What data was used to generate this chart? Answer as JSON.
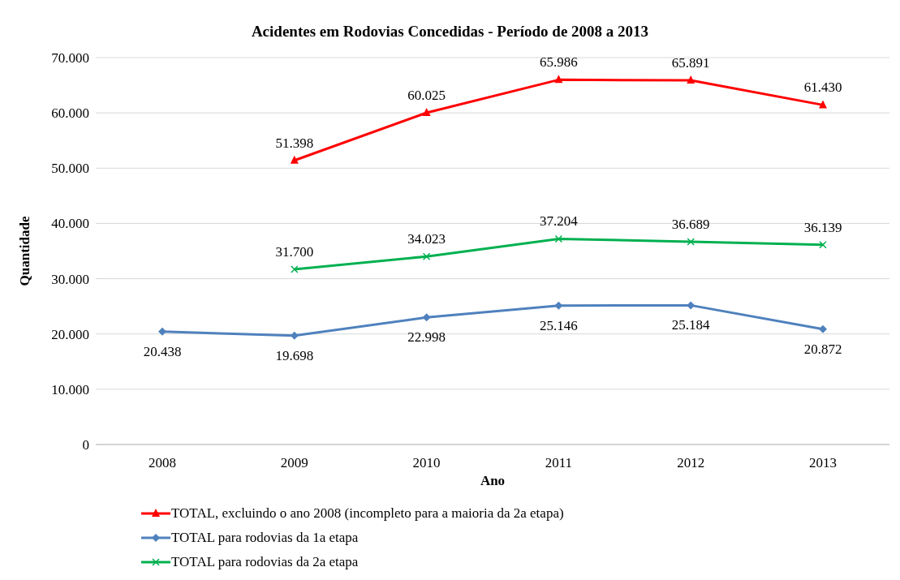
{
  "chart_data": {
    "type": "line",
    "title": "Acidentes em Rodovias Concedidas - Período de 2008 a 2013",
    "xlabel": "Ano",
    "ylabel": "Quantidade",
    "categories": [
      "2008",
      "2009",
      "2010",
      "2011",
      "2012",
      "2013"
    ],
    "series": [
      {
        "name": "TOTAL, excluindo o ano 2008 (incompleto para a maioria da 2a etapa)",
        "color": "#ff0000",
        "marker": "triangle",
        "values": [
          null,
          51398,
          60025,
          65986,
          65891,
          61430
        ],
        "value_labels": [
          null,
          "51.398",
          "60.025",
          "65.986",
          "65.891",
          "61.430"
        ]
      },
      {
        "name": "TOTAL para rodovias da 1a etapa",
        "color": "#4f81bd",
        "marker": "diamond",
        "values": [
          20438,
          19698,
          22998,
          25146,
          25184,
          20872
        ],
        "value_labels": [
          "20.438",
          "19.698",
          "22.998",
          "25.146",
          "25.184",
          "20.872"
        ]
      },
      {
        "name": "TOTAL para rodovias da 2a etapa",
        "color": "#00b050",
        "marker": "cross",
        "values": [
          null,
          31700,
          34023,
          37204,
          36689,
          36139
        ],
        "value_labels": [
          null,
          "31.700",
          "34.023",
          "37.204",
          "36.689",
          "36.139"
        ]
      }
    ],
    "ylim": [
      0,
      70000
    ],
    "yticks": [
      {
        "value": 0,
        "label": "0"
      },
      {
        "value": 10000,
        "label": "10.000"
      },
      {
        "value": 20000,
        "label": "20.000"
      },
      {
        "value": 30000,
        "label": "30.000"
      },
      {
        "value": 40000,
        "label": "40.000"
      },
      {
        "value": 50000,
        "label": "50.000"
      },
      {
        "value": 60000,
        "label": "60.000"
      },
      {
        "value": 70000,
        "label": "70.000"
      }
    ],
    "grid": "y",
    "legend": "bottom",
    "line_style": "solid"
  }
}
